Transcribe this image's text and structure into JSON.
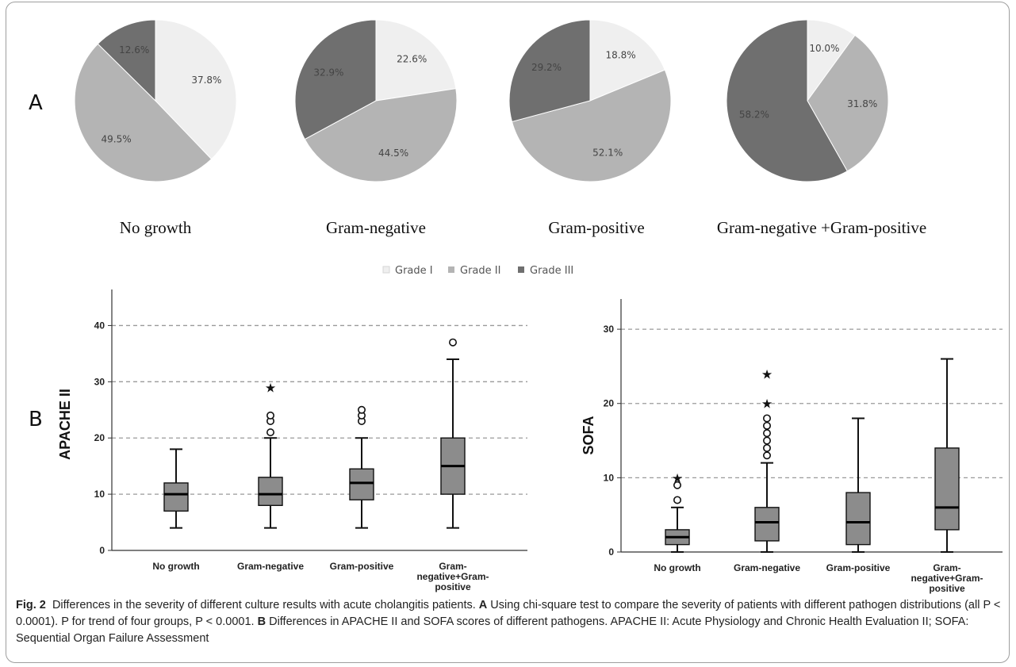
{
  "panel_a_label": "A",
  "panel_b_label": "B",
  "legend": [
    {
      "label": "Grade I",
      "color": "#efefef"
    },
    {
      "label": "Grade II",
      "color": "#b4b4b4"
    },
    {
      "label": "Grade III",
      "color": "#6f6f6f"
    }
  ],
  "chart_data": [
    {
      "type": "pie",
      "title": "No growth",
      "labels": [
        "Grade I",
        "Grade II",
        "Grade III"
      ],
      "values": [
        37.8,
        49.5,
        12.6
      ],
      "value_labels": [
        "37.8%",
        "49.5%",
        "12.6%"
      ]
    },
    {
      "type": "pie",
      "title": "Gram-negative",
      "labels": [
        "Grade I",
        "Grade II",
        "Grade III"
      ],
      "values": [
        22.6,
        44.5,
        32.9
      ],
      "value_labels": [
        "22.6%",
        "44.5%",
        "32.9%"
      ]
    },
    {
      "type": "pie",
      "title": "Gram-positive",
      "labels": [
        "Grade I",
        "Grade II",
        "Grade III"
      ],
      "values": [
        18.8,
        52.1,
        29.2
      ],
      "value_labels": [
        "18.8%",
        "52.1%",
        "29.2%"
      ]
    },
    {
      "type": "pie",
      "title": "Gram-negative +Gram-positive",
      "labels": [
        "Grade I",
        "Grade II",
        "Grade III"
      ],
      "values": [
        10.0,
        31.8,
        58.2
      ],
      "value_labels": [
        "10.0%",
        "31.8%",
        "58.2%"
      ]
    },
    {
      "type": "box",
      "ylabel": "APACHE II",
      "ylim": [
        0,
        45
      ],
      "yticks": [
        "0",
        "10",
        "20",
        "30",
        "40"
      ],
      "grid": true,
      "categories": [
        "No growth",
        "Gram-negative",
        "Gram-positive",
        "Gram-negative+Gram-positive"
      ],
      "category_lines": [
        [
          "No growth"
        ],
        [
          "Gram-negative"
        ],
        [
          "Gram-positive"
        ],
        [
          "Gram-",
          "negative+Gram-",
          "positive"
        ]
      ],
      "boxes": [
        {
          "min": 4,
          "q1": 7,
          "median": 10,
          "q3": 12,
          "max": 18,
          "outliers": [],
          "extremes": []
        },
        {
          "min": 4,
          "q1": 8,
          "median": 10,
          "q3": 13,
          "max": 20,
          "outliers": [
            21,
            23,
            24
          ],
          "extremes": [
            29
          ]
        },
        {
          "min": 4,
          "q1": 9,
          "median": 12,
          "q3": 14.5,
          "max": 20,
          "outliers": [
            23,
            24,
            25
          ],
          "extremes": []
        },
        {
          "min": 4,
          "q1": 10,
          "median": 15,
          "q3": 20,
          "max": 34,
          "outliers": [
            37
          ],
          "extremes": []
        }
      ]
    },
    {
      "type": "box",
      "ylabel": "SOFA",
      "ylim": [
        0,
        33
      ],
      "yticks": [
        "0",
        "10",
        "20",
        "30"
      ],
      "grid": true,
      "categories": [
        "No growth",
        "Gram-negative",
        "Gram-positive",
        "Gram-negative+Gram-positive"
      ],
      "category_lines": [
        [
          "No growth"
        ],
        [
          "Gram-negative"
        ],
        [
          "Gram-positive"
        ],
        [
          "Gram-",
          "negative+Gram-",
          "positive"
        ]
      ],
      "boxes": [
        {
          "min": 0,
          "q1": 1,
          "median": 2,
          "q3": 3,
          "max": 6,
          "outliers": [
            7,
            9
          ],
          "extremes": [
            10
          ]
        },
        {
          "min": 0,
          "q1": 1.5,
          "median": 4,
          "q3": 6,
          "max": 12,
          "outliers": [
            13,
            14,
            15,
            16,
            17,
            18
          ],
          "extremes": [
            20,
            24
          ]
        },
        {
          "min": 0,
          "q1": 1,
          "median": 4,
          "q3": 8,
          "max": 18,
          "outliers": [],
          "extremes": []
        },
        {
          "min": 0,
          "q1": 3,
          "median": 6,
          "q3": 14,
          "max": 26,
          "outliers": [],
          "extremes": []
        }
      ]
    }
  ],
  "caption": {
    "fig_label": "Fig. 2",
    "intro": "Differences in the severity of different culture results with acute cholangitis patients. ",
    "a_label": "A",
    "a_text": " Using chi-square test to compare the severity of patients with different pathogen distributions (all P < 0.0001). P for trend of four groups, P < 0.0001. ",
    "b_label": "B",
    "b_text": " Differences in APACHE II and SOFA scores of different pathogens. APACHE II: Acute Physiology and Chronic Health Evaluation II; SOFA: Sequential Organ Failure Assessment"
  }
}
